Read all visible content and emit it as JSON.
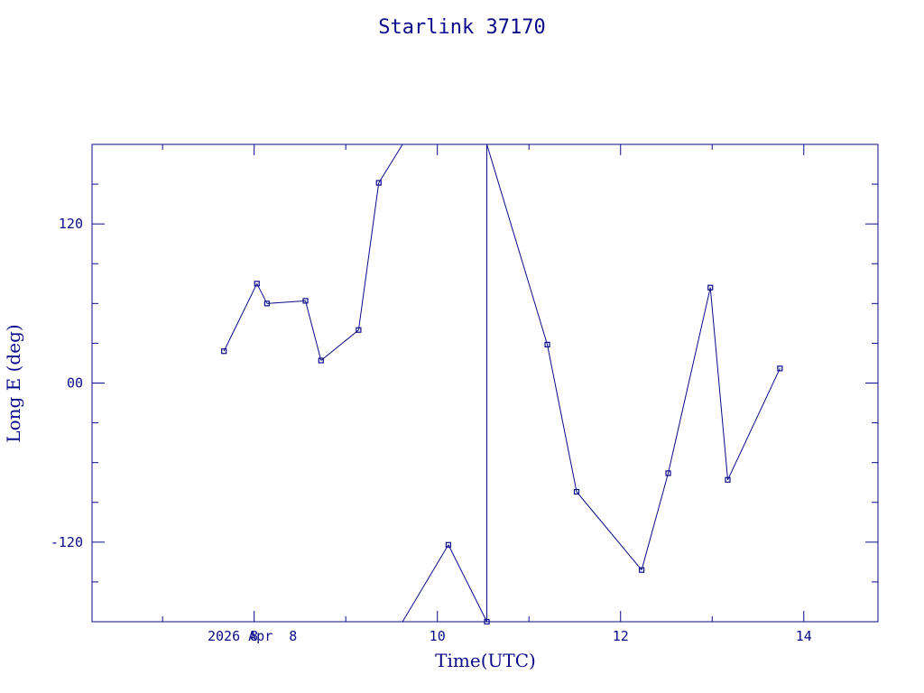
{
  "chart_data": {
    "type": "line",
    "title": "Starlink 37170",
    "xlabel": "Time(UTC)",
    "ylabel": "Long E (deg)",
    "date_label": "2026 Apr  8",
    "xlim": [
      6.23,
      14.81
    ],
    "ylim": [
      -180,
      180
    ],
    "x_ticks": [
      8,
      10,
      12,
      14
    ],
    "x_tick_labels": [
      "8",
      "10",
      "12",
      "14"
    ],
    "y_ticks": [
      -120,
      0,
      120
    ],
    "y_tick_labels": [
      "-120",
      "00",
      "120"
    ],
    "grid": false,
    "legend": "none",
    "color": "#0a0a8a",
    "series": [
      {
        "x": [
          7.67,
          8.03,
          8.14,
          8.56,
          8.73,
          9.14,
          9.36,
          10.12,
          10.54,
          11.2,
          11.52,
          12.23,
          12.52,
          12.98,
          13.17,
          13.74
        ],
        "y": [
          24,
          75,
          60,
          62,
          17,
          40,
          151,
          -122,
          -180,
          29,
          -82,
          -141,
          -68,
          72,
          -73,
          11
        ]
      }
    ],
    "wrap_segments": [
      {
        "x": [
          9.36,
          9.62
        ],
        "y": [
          151,
          180
        ]
      },
      {
        "x": [
          9.62,
          10.12
        ],
        "y": [
          -180,
          -122
        ]
      },
      {
        "x": [
          10.54,
          10.54
        ],
        "y": [
          -180,
          180
        ]
      },
      {
        "x": [
          10.54,
          11.2
        ],
        "y": [
          180,
          29
        ]
      }
    ]
  }
}
